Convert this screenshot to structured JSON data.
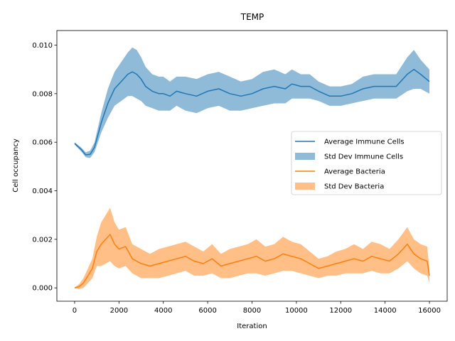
{
  "chart_data": {
    "type": "line",
    "title": "TEMP",
    "xlabel": "Iteration",
    "ylabel": "Cell occupancy",
    "xlim": [
      -800,
      16800
    ],
    "ylim": [
      -0.00055,
      0.0106
    ],
    "xticks": [
      0,
      2000,
      4000,
      6000,
      8000,
      10000,
      12000,
      14000,
      16000
    ],
    "xtick_labels": [
      "0",
      "2000",
      "4000",
      "6000",
      "8000",
      "10000",
      "12000",
      "14000",
      "16000"
    ],
    "yticks": [
      0.0,
      0.002,
      0.004,
      0.006,
      0.008,
      0.01
    ],
    "ytick_labels": [
      "0.000",
      "0.002",
      "0.004",
      "0.006",
      "0.008",
      "0.010"
    ],
    "grid": false,
    "legend_position": "center-right",
    "colors": {
      "immune": "#1f77b4",
      "bacteria": "#ff7f0e"
    },
    "legend": [
      {
        "label": "Average Immune Cells",
        "kind": "line",
        "series": "immune"
      },
      {
        "label": "Std Dev Immune Cells",
        "kind": "band",
        "series": "immune"
      },
      {
        "label": "Average Bacteria",
        "kind": "line",
        "series": "bacteria"
      },
      {
        "label": "Std Dev Bacteria",
        "kind": "band",
        "series": "bacteria"
      }
    ],
    "series": [
      {
        "key": "immune",
        "name": "Average Immune Cells",
        "band_name": "Std Dev Immune Cells",
        "x": [
          0,
          300,
          500,
          700,
          900,
          1200,
          1500,
          1800,
          2100,
          2400,
          2600,
          2800,
          3000,
          3200,
          3500,
          3800,
          4000,
          4300,
          4600,
          5000,
          5500,
          6000,
          6500,
          7000,
          7500,
          8000,
          8500,
          9000,
          9500,
          9800,
          10200,
          10600,
          11000,
          11500,
          12000,
          12500,
          13000,
          13500,
          14000,
          14500,
          15000,
          15300,
          15600,
          16000
        ],
        "y": [
          0.00595,
          0.0057,
          0.00548,
          0.0055,
          0.0058,
          0.0068,
          0.0076,
          0.0082,
          0.0085,
          0.0088,
          0.0089,
          0.0088,
          0.0086,
          0.0083,
          0.0081,
          0.008,
          0.008,
          0.0079,
          0.0081,
          0.008,
          0.0079,
          0.0081,
          0.0082,
          0.008,
          0.0079,
          0.008,
          0.0082,
          0.0083,
          0.0082,
          0.0084,
          0.0083,
          0.0083,
          0.0081,
          0.0079,
          0.0079,
          0.008,
          0.0082,
          0.0083,
          0.0083,
          0.0083,
          0.0088,
          0.009,
          0.0088,
          0.0085
        ],
        "std": [
          5e-05,
          8e-05,
          0.0001,
          0.00015,
          0.0002,
          0.0004,
          0.0006,
          0.0007,
          0.0008,
          0.0009,
          0.001,
          0.001,
          0.0009,
          0.0008,
          0.0007,
          0.0007,
          0.0007,
          0.0006,
          0.0006,
          0.0007,
          0.0007,
          0.0007,
          0.0007,
          0.0007,
          0.0006,
          0.0006,
          0.0007,
          0.0007,
          0.0006,
          0.0006,
          0.0005,
          0.0005,
          0.0004,
          0.0004,
          0.0004,
          0.0004,
          0.0005,
          0.0005,
          0.0005,
          0.0005,
          0.0007,
          0.0008,
          0.0006,
          0.0005
        ]
      },
      {
        "key": "bacteria",
        "name": "Average Bacteria",
        "band_name": "Std Dev Bacteria",
        "x": [
          0,
          200,
          400,
          600,
          800,
          1000,
          1200,
          1400,
          1600,
          1800,
          2000,
          2300,
          2600,
          3000,
          3400,
          3800,
          4200,
          4600,
          5000,
          5400,
          5800,
          6200,
          6600,
          7000,
          7400,
          7800,
          8200,
          8600,
          9000,
          9400,
          9800,
          10200,
          10600,
          11000,
          11400,
          11800,
          12200,
          12600,
          13000,
          13400,
          13800,
          14200,
          14600,
          15000,
          15300,
          15600,
          15900,
          16000
        ],
        "y": [
          0.0,
          5e-05,
          0.0002,
          0.0005,
          0.0008,
          0.0015,
          0.0018,
          0.002,
          0.0022,
          0.0018,
          0.0016,
          0.0017,
          0.0012,
          0.001,
          0.0009,
          0.001,
          0.0011,
          0.0012,
          0.0013,
          0.0011,
          0.001,
          0.0012,
          0.0009,
          0.001,
          0.0011,
          0.0012,
          0.0013,
          0.0011,
          0.0012,
          0.0014,
          0.0013,
          0.0012,
          0.001,
          0.0008,
          0.0009,
          0.001,
          0.0011,
          0.0012,
          0.0011,
          0.0013,
          0.0012,
          0.0011,
          0.0014,
          0.0018,
          0.0014,
          0.0012,
          0.0011,
          0.0005
        ],
        "std": [
          2e-05,
          0.0001,
          0.0002,
          0.0003,
          0.0004,
          0.0006,
          0.0009,
          0.001,
          0.0011,
          0.0009,
          0.0008,
          0.0008,
          0.0006,
          0.0006,
          0.0005,
          0.0006,
          0.0006,
          0.0006,
          0.0006,
          0.0006,
          0.0005,
          0.0006,
          0.0005,
          0.0006,
          0.0006,
          0.0006,
          0.0007,
          0.0006,
          0.0006,
          0.0007,
          0.0006,
          0.0006,
          0.0005,
          0.0004,
          0.0004,
          0.0005,
          0.0005,
          0.0006,
          0.0005,
          0.0006,
          0.0006,
          0.0005,
          0.0006,
          0.0007,
          0.0006,
          0.0006,
          0.0006,
          0.0003
        ]
      }
    ]
  }
}
